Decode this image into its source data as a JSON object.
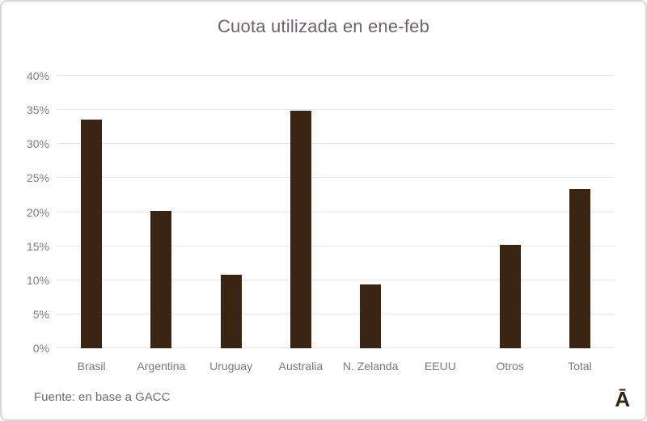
{
  "chart": {
    "title": "Cuota utilizada en ene-feb",
    "source": "Fuente: en base a GACC",
    "logo": "Ā"
  },
  "colors": {
    "bar": "#3A2515",
    "title_text": "#6A6468",
    "axis_text": "#827C81",
    "gridline": "#E9E7E8",
    "frame_border": "#D9D7D9",
    "background": "#FFFFFF"
  },
  "chart_data": {
    "type": "bar",
    "title": "Cuota utilizada en ene-feb",
    "categories": [
      "Brasil",
      "Argentina",
      "Uruguay",
      "Australia",
      "N. Zelanda",
      "EEUU",
      "Otros",
      "Total"
    ],
    "values": [
      33.6,
      20.2,
      10.8,
      34.9,
      9.4,
      0,
      15.2,
      23.4
    ],
    "yticks": [
      0,
      5,
      10,
      15,
      20,
      25,
      30,
      35,
      40
    ],
    "ytick_labels": [
      "0%",
      "5%",
      "10%",
      "15%",
      "20%",
      "25%",
      "30%",
      "35%",
      "40%"
    ],
    "ylim": [
      0,
      40
    ],
    "xlabel": "",
    "ylabel": "",
    "grid": true,
    "legend": false,
    "annotation": "Fuente: en base a GACC"
  }
}
